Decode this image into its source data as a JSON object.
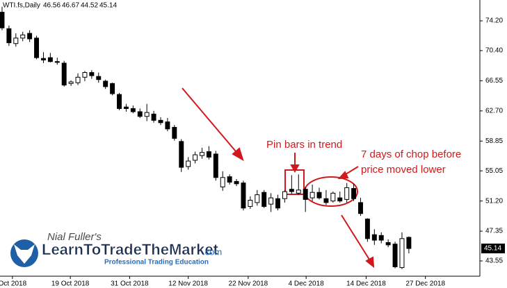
{
  "chart_data": {
    "type": "candlestick",
    "title": "WTI.fs,Daily",
    "x": [
      0,
      1,
      2,
      3,
      4,
      5,
      6,
      7,
      8,
      9,
      10,
      11,
      12,
      13,
      14,
      15,
      16,
      17,
      18,
      19,
      20,
      21,
      22,
      23,
      24,
      25,
      26,
      27,
      28,
      29,
      30,
      31,
      32,
      33,
      34,
      35,
      36,
      37,
      38,
      39,
      40,
      41,
      42,
      43,
      44,
      45,
      46,
      47,
      48,
      49,
      50,
      51,
      52,
      53,
      54,
      55,
      56,
      57,
      58,
      59
    ],
    "open": [
      75.3,
      73.2,
      71.3,
      72.0,
      72.6,
      72.0,
      69.4,
      69.5,
      69.0,
      68.8,
      66.2,
      66.3,
      67.0,
      67.6,
      67.1,
      66.5,
      66.2,
      64.8,
      63.2,
      63.0,
      62.6,
      62.0,
      62.3,
      61.5,
      61.3,
      60.6,
      58.8,
      55.6,
      56.4,
      57.0,
      57.5,
      57.2,
      53.0,
      54.3,
      53.7,
      53.5,
      50.5,
      51.0,
      52.3,
      50.8,
      51.5,
      51.5,
      52.7,
      52.2,
      52.7,
      51.6,
      52.3,
      51.5,
      51.2,
      51.6,
      51.4,
      52.8,
      51.0,
      48.9,
      46.9,
      46.8,
      45.9,
      45.7,
      42.7,
      46.56
    ],
    "high": [
      76.0,
      73.6,
      72.6,
      72.8,
      73.0,
      72.3,
      70.2,
      70.1,
      69.5,
      69.1,
      66.6,
      67.5,
      67.8,
      67.9,
      67.6,
      66.7,
      66.3,
      65.0,
      63.6,
      63.4,
      63.0,
      63.6,
      62.7,
      61.9,
      61.8,
      60.9,
      59.1,
      56.8,
      57.5,
      58.0,
      58.2,
      57.6,
      55.0,
      54.6,
      54.0,
      53.8,
      51.8,
      52.6,
      52.6,
      52.2,
      52.0,
      52.6,
      54.5,
      54.6,
      53.0,
      53.3,
      52.9,
      52.6,
      52.4,
      52.4,
      53.5,
      53.4,
      51.6,
      49.0,
      47.6,
      47.2,
      46.3,
      46.0,
      47.2,
      46.67
    ],
    "low": [
      73.0,
      71.0,
      70.9,
      71.6,
      71.5,
      69.3,
      68.8,
      68.9,
      68.6,
      65.8,
      65.9,
      66.0,
      66.5,
      66.8,
      66.3,
      65.5,
      64.7,
      62.8,
      62.6,
      62.4,
      61.8,
      61.4,
      61.2,
      60.9,
      60.1,
      58.9,
      54.9,
      55.2,
      56.0,
      56.6,
      56.5,
      53.8,
      52.5,
      53.3,
      53.1,
      50.0,
      50.2,
      50.6,
      50.3,
      49.8,
      50.0,
      51.0,
      52.1,
      52.0,
      49.8,
      51.2,
      51.4,
      50.7,
      51.0,
      51.0,
      51.0,
      51.2,
      49.3,
      46.0,
      45.6,
      45.8,
      45.3,
      42.6,
      42.5,
      44.52
    ],
    "close": [
      73.3,
      71.4,
      72.0,
      72.4,
      71.9,
      69.5,
      69.2,
      69.0,
      68.9,
      66.0,
      66.4,
      67.0,
      67.6,
      67.2,
      66.7,
      65.8,
      64.9,
      63.0,
      63.0,
      62.6,
      62.0,
      62.5,
      61.5,
      61.2,
      60.4,
      59.2,
      55.5,
      56.3,
      57.1,
      57.4,
      56.8,
      54.2,
      54.2,
      53.6,
      53.4,
      50.3,
      51.3,
      52.0,
      50.5,
      51.6,
      50.3,
      52.4,
      52.4,
      52.6,
      51.4,
      52.3,
      51.6,
      51.0,
      52.2,
      51.2,
      52.9,
      51.5,
      49.6,
      46.4,
      46.2,
      46.2,
      45.6,
      42.8,
      46.4,
      45.14
    ],
    "up_color": "#ffffff",
    "down_color": "#000000",
    "xlim": [
      -0.3,
      69.3
    ],
    "xticks": [
      {
        "value": 1.5,
        "label": "Oct 2018"
      },
      {
        "value": 9.9,
        "label": "19 Oct 2018"
      },
      {
        "value": 18.5,
        "label": "31 Oct 2018"
      },
      {
        "value": 27.0,
        "label": "12 Nov 2018"
      },
      {
        "value": 35.7,
        "label": "22 Nov 2018"
      },
      {
        "value": 44.1,
        "label": "4 Dec 2018"
      },
      {
        "value": 52.8,
        "label": "14 Dec 2018"
      },
      {
        "value": 61.4,
        "label": "27 Dec 2018"
      }
    ],
    "ylim": [
      41.6,
      76.86
    ],
    "yticks": [
      {
        "value": 74.2,
        "label": "74.20"
      },
      {
        "value": 70.4,
        "label": "70.40"
      },
      66.55,
      {
        "value": 62.7,
        "label": "62.70"
      },
      58.85,
      55.05,
      {
        "value": 51.2,
        "label": "51.20"
      },
      47.35,
      43.55
    ],
    "annotations": [
      "Pin bars in trend",
      "7 days of chop before",
      "price moved lower"
    ],
    "logo": {
      "author": "Nial Fuller's",
      "brand": "LearnToTradeTheMarket",
      "domain": ".com",
      "tagline": "Professional Trading Education"
    }
  }
}
